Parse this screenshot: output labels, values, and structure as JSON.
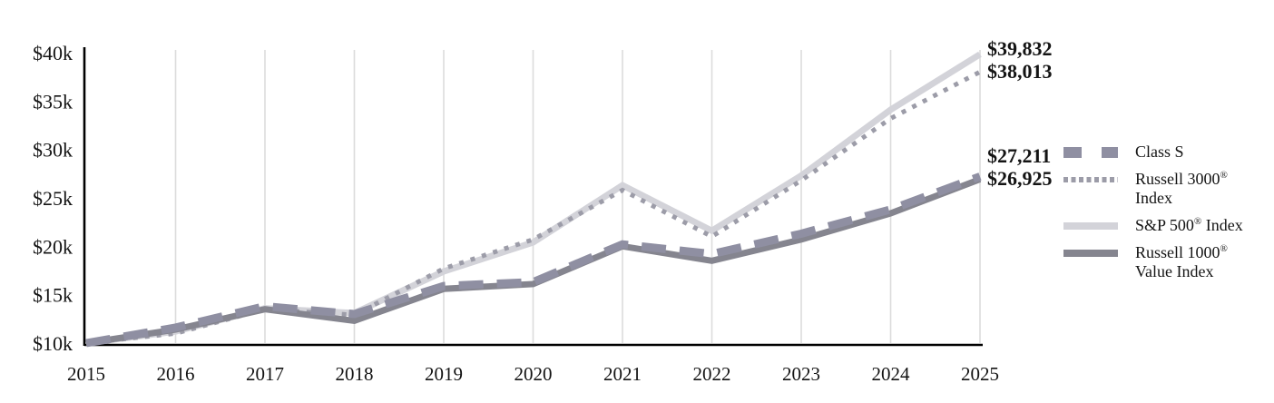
{
  "chart_data": {
    "type": "line",
    "x": [
      2015,
      2016,
      2017,
      2018,
      2019,
      2020,
      2021,
      2022,
      2023,
      2024,
      2025
    ],
    "x_tick_labels": [
      "2015",
      "2016",
      "2017",
      "2018",
      "2019",
      "2020",
      "2021",
      "2022",
      "2023",
      "2024",
      "2025"
    ],
    "y_ticks": [
      {
        "value": 10000,
        "label": "$10k"
      },
      {
        "value": 15000,
        "label": "$15k"
      },
      {
        "value": 20000,
        "label": "$20k"
      },
      {
        "value": 25000,
        "label": "$25k"
      },
      {
        "value": 30000,
        "label": "$30k"
      },
      {
        "value": 35000,
        "label": "$35k"
      },
      {
        "value": 40000,
        "label": "$40k"
      }
    ],
    "ylim": [
      10000,
      40000
    ],
    "grid": "vertical-only",
    "legend_position": "right",
    "series": [
      {
        "name": "Class S",
        "legend_label": "Class S",
        "style": "dashed",
        "color": "#8F8FA2",
        "width": 9,
        "z": 4,
        "values": [
          10000,
          11600,
          13800,
          13000,
          15900,
          16300,
          20200,
          19200,
          21300,
          23800,
          27211
        ],
        "end_label": "$27,211",
        "final_value": 27211
      },
      {
        "name": "Russell 3000 Index",
        "legend_label": "Russell 3000®\nIndex",
        "style": "dotted",
        "color": "#9C9CA8",
        "width": 5,
        "z": 2,
        "values": [
          10000,
          11000,
          13500,
          12900,
          17700,
          20700,
          25800,
          21000,
          26800,
          33200,
          38013
        ],
        "end_label": "$38,013",
        "final_value": 38013
      },
      {
        "name": "S&P 500 Index",
        "legend_label": "S&P 500® Index",
        "style": "solid",
        "color": "#D3D3D9",
        "width": 7,
        "z": 1,
        "values": [
          10000,
          11200,
          13600,
          13100,
          17400,
          20400,
          26300,
          21600,
          27300,
          34100,
          39832
        ],
        "end_label": "$39,832",
        "final_value": 39832
      },
      {
        "name": "Russell 1000 Value Index",
        "legend_label": "Russell 1000®\nValue Index",
        "style": "solid",
        "color": "#85858F",
        "width": 7,
        "z": 3,
        "values": [
          10000,
          11400,
          13500,
          12300,
          15600,
          16100,
          20000,
          18500,
          20700,
          23400,
          26925
        ],
        "end_label": "$26,925",
        "final_value": 26925
      }
    ],
    "colors": {
      "axis": "#000000",
      "gridline": "#DCDCDC",
      "text": "#141414"
    }
  }
}
